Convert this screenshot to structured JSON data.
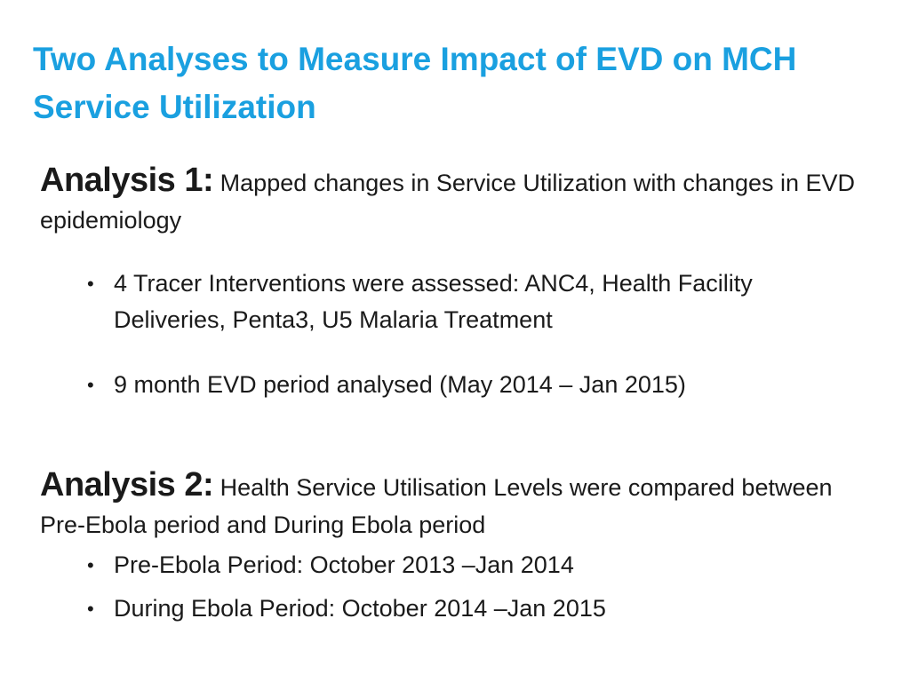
{
  "title": "Two Analyses to Measure Impact of EVD on MCH Service Utilization",
  "analysis1": {
    "label": "Analysis 1:",
    "description": "Mapped changes in Service Utilization with changes in EVD epidemiology",
    "bullets": [
      "4 Tracer Interventions were assessed:  ANC4, Health Facility Deliveries, Penta3, U5 Malaria Treatment",
      "9 month EVD period analysed (May 2014 – Jan 2015)"
    ]
  },
  "analysis2": {
    "label": "Analysis 2:",
    "description": "Health Service Utilisation Levels were compared between Pre-Ebola period and During Ebola period",
    "bullets": [
      "Pre-Ebola Period: October 2013 –Jan 2014",
      "During Ebola Period: October 2014 –Jan 2015"
    ]
  },
  "colors": {
    "title": "#1aa0e0",
    "text": "#1a1a1a",
    "background": "#ffffff"
  }
}
